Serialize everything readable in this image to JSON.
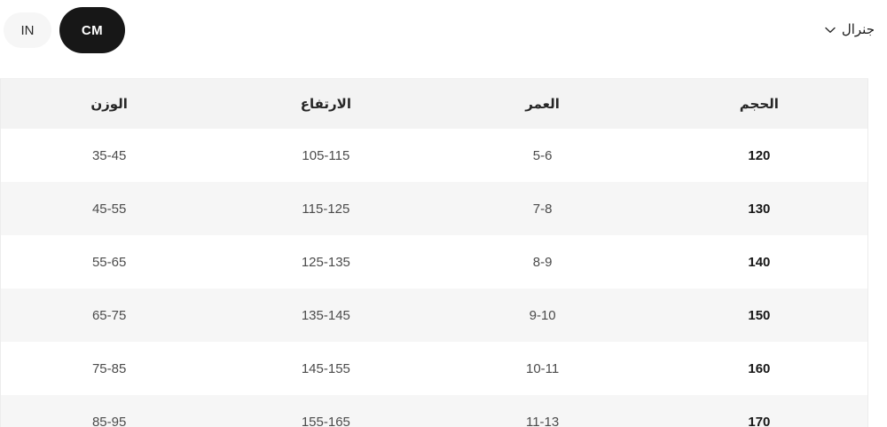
{
  "toolbar": {
    "unit_toggle": {
      "in_label": "IN",
      "cm_label": "CM",
      "selected": "CM"
    },
    "dropdown": {
      "label": "جنرال"
    }
  },
  "table": {
    "columns": [
      {
        "key": "size",
        "label": "الحجم"
      },
      {
        "key": "age",
        "label": "العمر"
      },
      {
        "key": "height",
        "label": "الارتفاع"
      },
      {
        "key": "weight",
        "label": "الوزن"
      }
    ],
    "rows": [
      {
        "size": "120",
        "age": "5-6",
        "height": "105-115",
        "weight": "35-45"
      },
      {
        "size": "130",
        "age": "7-8",
        "height": "115-125",
        "weight": "45-55"
      },
      {
        "size": "140",
        "age": "8-9",
        "height": "125-135",
        "weight": "55-65"
      },
      {
        "size": "150",
        "age": "9-10",
        "height": "135-145",
        "weight": "65-75"
      },
      {
        "size": "160",
        "age": "10-11",
        "height": "145-155",
        "weight": "75-85"
      },
      {
        "size": "170",
        "age": "11-13",
        "height": "155-165",
        "weight": "85-95"
      }
    ]
  },
  "colors": {
    "selected_pill_bg": "#171717",
    "unselected_pill_bg": "#f6f6f6",
    "header_bg": "#f3f3f3",
    "stripe_bg": "#f6f6f6",
    "border": "#ececec"
  }
}
